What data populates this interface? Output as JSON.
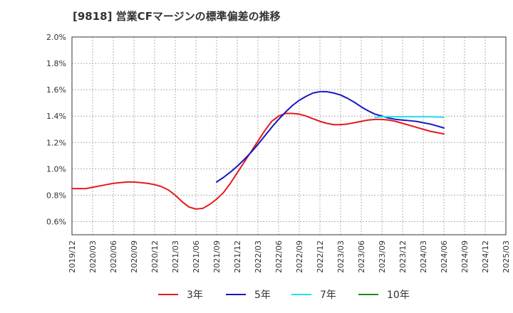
{
  "chart_data": {
    "type": "line",
    "title": "[9818]  営業CFマージンの標準偏差の推移",
    "xlabel": "",
    "ylabel": "",
    "ylim": [
      0.5,
      2.0
    ],
    "y_ticks": [
      "0.6%",
      "0.8%",
      "1.0%",
      "1.2%",
      "1.4%",
      "1.6%",
      "1.8%",
      "2.0%"
    ],
    "y_tick_values": [
      0.6,
      0.8,
      1.0,
      1.2,
      1.4,
      1.6,
      1.8,
      2.0
    ],
    "categories": [
      "2019/12",
      "2020/03",
      "2020/06",
      "2020/09",
      "2020/12",
      "2021/03",
      "2021/06",
      "2021/09",
      "2021/12",
      "2022/03",
      "2022/06",
      "2022/09",
      "2022/12",
      "2023/03",
      "2023/06",
      "2023/09",
      "2023/12",
      "2024/03",
      "2024/06",
      "2024/09",
      "2024/12",
      "2025/03"
    ],
    "grid": true,
    "legend_position": "bottom",
    "series": [
      {
        "name": "3年",
        "color": "#e41a1c",
        "points": [
          [
            "2019/12",
            0.85
          ],
          [
            "2020/01",
            0.85
          ],
          [
            "2020/02",
            0.85
          ],
          [
            "2020/03",
            0.86
          ],
          [
            "2020/04",
            0.87
          ],
          [
            "2020/05",
            0.88
          ],
          [
            "2020/06",
            0.89
          ],
          [
            "2020/07",
            0.895
          ],
          [
            "2020/08",
            0.9
          ],
          [
            "2020/09",
            0.9
          ],
          [
            "2020/10",
            0.895
          ],
          [
            "2020/11",
            0.89
          ],
          [
            "2020/12",
            0.88
          ],
          [
            "2021/01",
            0.865
          ],
          [
            "2021/02",
            0.84
          ],
          [
            "2021/03",
            0.8
          ],
          [
            "2021/04",
            0.75
          ],
          [
            "2021/05",
            0.71
          ],
          [
            "2021/06",
            0.695
          ],
          [
            "2021/07",
            0.7
          ],
          [
            "2021/08",
            0.73
          ],
          [
            "2021/09",
            0.77
          ],
          [
            "2021/10",
            0.82
          ],
          [
            "2021/11",
            0.89
          ],
          [
            "2021/12",
            0.97
          ],
          [
            "2022/01",
            1.05
          ],
          [
            "2022/02",
            1.13
          ],
          [
            "2022/03",
            1.21
          ],
          [
            "2022/04",
            1.29
          ],
          [
            "2022/05",
            1.36
          ],
          [
            "2022/06",
            1.4
          ],
          [
            "2022/07",
            1.42
          ],
          [
            "2022/08",
            1.42
          ],
          [
            "2022/09",
            1.415
          ],
          [
            "2022/10",
            1.4
          ],
          [
            "2022/11",
            1.38
          ],
          [
            "2022/12",
            1.36
          ],
          [
            "2023/01",
            1.345
          ],
          [
            "2023/02",
            1.335
          ],
          [
            "2023/03",
            1.335
          ],
          [
            "2023/04",
            1.34
          ],
          [
            "2023/05",
            1.35
          ],
          [
            "2023/06",
            1.36
          ],
          [
            "2023/07",
            1.37
          ],
          [
            "2023/08",
            1.375
          ],
          [
            "2023/09",
            1.375
          ],
          [
            "2023/10",
            1.37
          ],
          [
            "2023/11",
            1.36
          ],
          [
            "2023/12",
            1.345
          ],
          [
            "2024/01",
            1.33
          ],
          [
            "2024/02",
            1.315
          ],
          [
            "2024/03",
            1.3
          ],
          [
            "2024/04",
            1.285
          ],
          [
            "2024/05",
            1.275
          ],
          [
            "2024/06",
            1.265
          ]
        ]
      },
      {
        "name": "5年",
        "color": "#1818c0",
        "points": [
          [
            "2021/09",
            0.9
          ],
          [
            "2021/10",
            0.935
          ],
          [
            "2021/11",
            0.975
          ],
          [
            "2021/12",
            1.02
          ],
          [
            "2022/01",
            1.07
          ],
          [
            "2022/02",
            1.125
          ],
          [
            "2022/03",
            1.185
          ],
          [
            "2022/04",
            1.25
          ],
          [
            "2022/05",
            1.315
          ],
          [
            "2022/06",
            1.375
          ],
          [
            "2022/07",
            1.43
          ],
          [
            "2022/08",
            1.48
          ],
          [
            "2022/09",
            1.52
          ],
          [
            "2022/10",
            1.55
          ],
          [
            "2022/11",
            1.575
          ],
          [
            "2022/12",
            1.585
          ],
          [
            "2023/01",
            1.585
          ],
          [
            "2023/02",
            1.575
          ],
          [
            "2023/03",
            1.56
          ],
          [
            "2023/04",
            1.535
          ],
          [
            "2023/05",
            1.505
          ],
          [
            "2023/06",
            1.47
          ],
          [
            "2023/07",
            1.44
          ],
          [
            "2023/08",
            1.415
          ],
          [
            "2023/09",
            1.4
          ],
          [
            "2023/10",
            1.385
          ],
          [
            "2023/11",
            1.375
          ],
          [
            "2023/12",
            1.37
          ],
          [
            "2024/01",
            1.365
          ],
          [
            "2024/02",
            1.36
          ],
          [
            "2024/03",
            1.35
          ],
          [
            "2024/04",
            1.34
          ],
          [
            "2024/05",
            1.325
          ],
          [
            "2024/06",
            1.31
          ]
        ]
      },
      {
        "name": "7年",
        "color": "#27e0f0",
        "points": [
          [
            "2023/08",
            1.39
          ],
          [
            "2023/09",
            1.395
          ],
          [
            "2023/10",
            1.395
          ],
          [
            "2023/11",
            1.395
          ],
          [
            "2023/12",
            1.395
          ],
          [
            "2024/01",
            1.395
          ],
          [
            "2024/02",
            1.395
          ],
          [
            "2024/03",
            1.395
          ],
          [
            "2024/04",
            1.395
          ],
          [
            "2024/05",
            1.393
          ],
          [
            "2024/06",
            1.39
          ]
        ]
      },
      {
        "name": "10年",
        "color": "#1a8c1a",
        "points": []
      }
    ]
  }
}
